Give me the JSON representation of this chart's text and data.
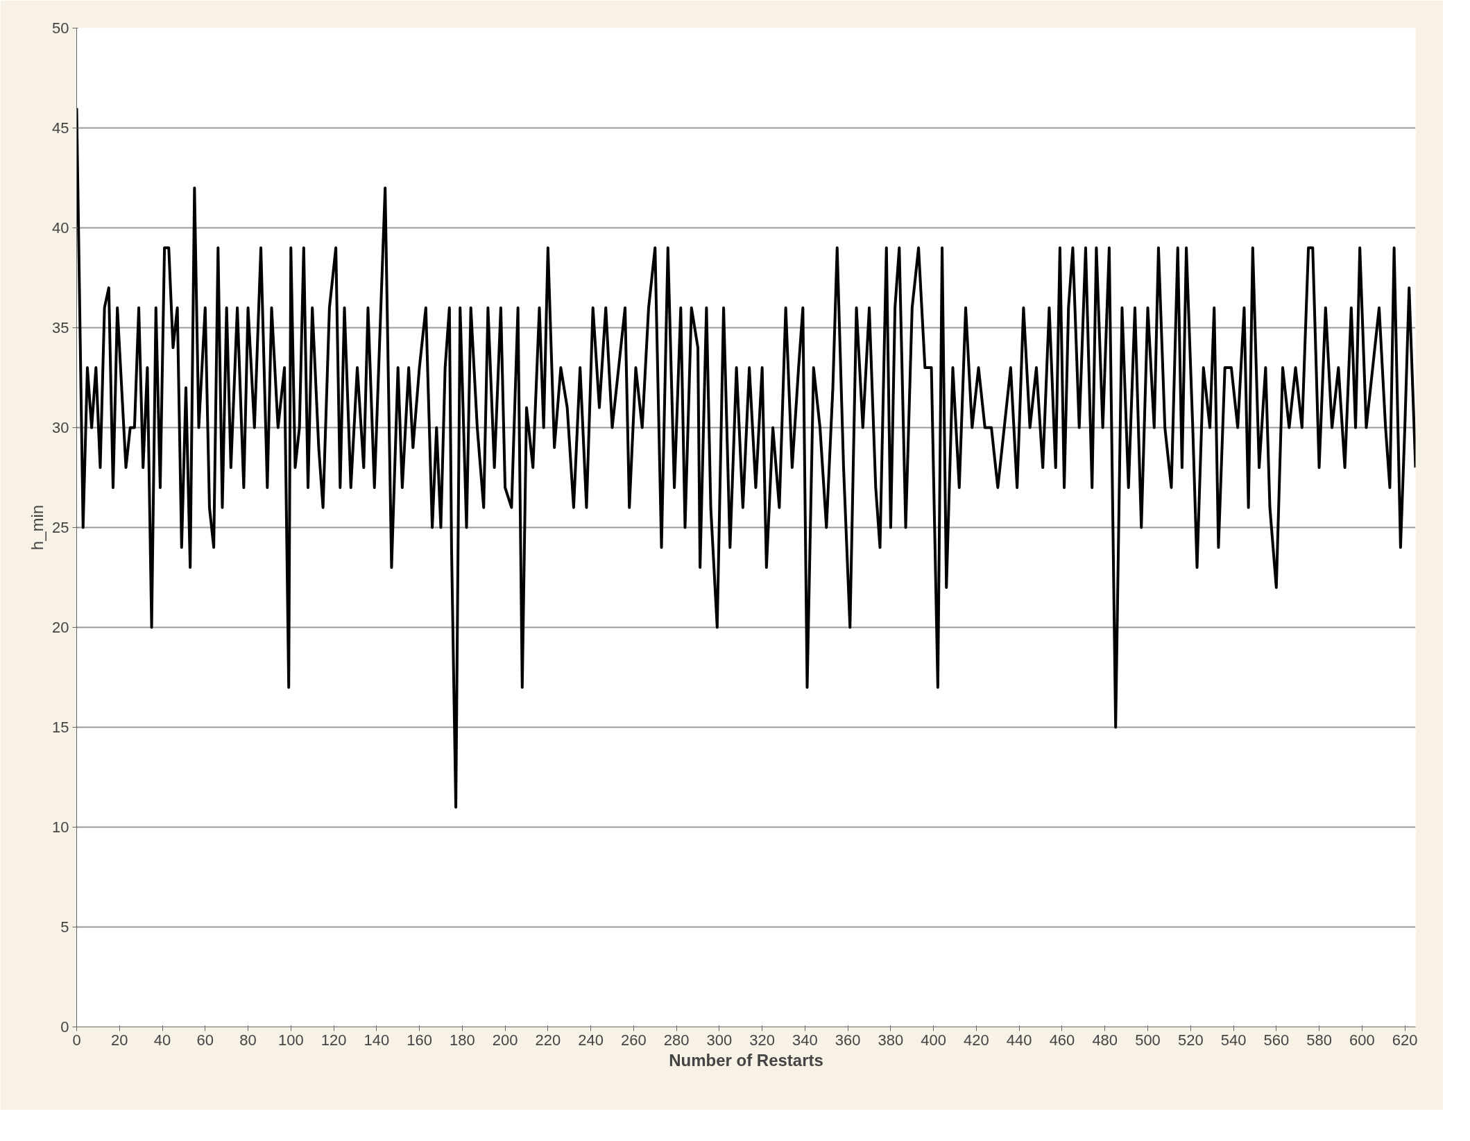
{
  "chart_data": {
    "type": "line",
    "xlabel": "Number of Restarts",
    "ylabel": "h_min",
    "xlim": [
      0,
      625
    ],
    "ylim": [
      0,
      50
    ],
    "xticks": [
      0,
      20,
      40,
      60,
      80,
      100,
      120,
      140,
      160,
      180,
      200,
      220,
      240,
      260,
      280,
      300,
      320,
      340,
      360,
      380,
      400,
      420,
      440,
      460,
      480,
      500,
      520,
      540,
      560,
      580,
      600,
      620
    ],
    "yticks": [
      0,
      5,
      10,
      15,
      20,
      25,
      30,
      35,
      40,
      45,
      50
    ],
    "grid": "y",
    "marker": "none",
    "line_style": "solid",
    "x": [
      0,
      3,
      5,
      7,
      9,
      11,
      13,
      15,
      17,
      19,
      21,
      23,
      25,
      27,
      29,
      31,
      33,
      35,
      37,
      39,
      41,
      43,
      45,
      47,
      49,
      51,
      53,
      55,
      57,
      60,
      62,
      64,
      66,
      68,
      70,
      72,
      75,
      78,
      80,
      83,
      86,
      89,
      91,
      94,
      97,
      99,
      100,
      102,
      104,
      106,
      108,
      110,
      113,
      115,
      118,
      121,
      123,
      125,
      128,
      131,
      134,
      136,
      139,
      141,
      144,
      147,
      150,
      152,
      155,
      157,
      160,
      163,
      166,
      168,
      170,
      172,
      174,
      175,
      177,
      179,
      182,
      184,
      187,
      190,
      192,
      195,
      198,
      200,
      203,
      206,
      208,
      210,
      213,
      216,
      218,
      220,
      223,
      226,
      229,
      232,
      235,
      238,
      241,
      244,
      247,
      250,
      253,
      256,
      258,
      261,
      264,
      267,
      270,
      273,
      276,
      279,
      282,
      284,
      287,
      290,
      291,
      294,
      296,
      299,
      302,
      305,
      308,
      311,
      314,
      317,
      320,
      322,
      325,
      328,
      331,
      334,
      337,
      339,
      341,
      344,
      347,
      350,
      353,
      355,
      358,
      361,
      364,
      367,
      370,
      373,
      375,
      378,
      380,
      382,
      384,
      387,
      390,
      393,
      396,
      399,
      402,
      404,
      406,
      409,
      412,
      415,
      418,
      421,
      424,
      427,
      430,
      433,
      436,
      439,
      442,
      445,
      448,
      451,
      454,
      457,
      459,
      461,
      463,
      465,
      468,
      471,
      474,
      476,
      479,
      482,
      485,
      488,
      491,
      494,
      497,
      500,
      503,
      505,
      508,
      511,
      514,
      516,
      518,
      521,
      523,
      526,
      529,
      531,
      533,
      536,
      539,
      542,
      545,
      547,
      549,
      552,
      555,
      557,
      560,
      563,
      566,
      569,
      572,
      575,
      577,
      580,
      583,
      586,
      589,
      592,
      595,
      597,
      599,
      602,
      605,
      608,
      611,
      613,
      615,
      618,
      620,
      622,
      625
    ],
    "series": [
      {
        "color": "#000000",
        "values": [
          46,
          25,
          33,
          30,
          33,
          28,
          36,
          37,
          27,
          36,
          32,
          28,
          30,
          30,
          36,
          28,
          33,
          20,
          36,
          27,
          39,
          39,
          34,
          36,
          24,
          32,
          23,
          42,
          30,
          36,
          26,
          24,
          39,
          26,
          36,
          28,
          36,
          27,
          36,
          30,
          39,
          27,
          36,
          30,
          33,
          17,
          39,
          28,
          30,
          39,
          27,
          36,
          29,
          26,
          36,
          39,
          27,
          36,
          27,
          33,
          28,
          36,
          27,
          33,
          42,
          23,
          33,
          27,
          33,
          29,
          33,
          36,
          25,
          30,
          25,
          33,
          36,
          24,
          11,
          36,
          25,
          36,
          30,
          26,
          36,
          28,
          36,
          27,
          26,
          36,
          17,
          31,
          28,
          36,
          30,
          39,
          29,
          33,
          31,
          26,
          33,
          26,
          36,
          31,
          36,
          30,
          33,
          36,
          26,
          33,
          30,
          36,
          39,
          24,
          39,
          27,
          36,
          25,
          36,
          34,
          23,
          36,
          26,
          20,
          36,
          24,
          33,
          26,
          33,
          27,
          33,
          23,
          30,
          26,
          36,
          28,
          33,
          36,
          17,
          33,
          30,
          25,
          32,
          39,
          28,
          20,
          36,
          30,
          36,
          27,
          24,
          39,
          25,
          36,
          39,
          25,
          36,
          39,
          33,
          33,
          17,
          39,
          22,
          33,
          27,
          36,
          30,
          33,
          30,
          30,
          27,
          30,
          33,
          27,
          36,
          30,
          33,
          28,
          36,
          28,
          39,
          27,
          36,
          39,
          30,
          39,
          27,
          39,
          30,
          39,
          15,
          36,
          27,
          36,
          25,
          36,
          30,
          39,
          30,
          27,
          39,
          28,
          39,
          30,
          23,
          33,
          30,
          36,
          24,
          33,
          33,
          30,
          36,
          26,
          39,
          28,
          33,
          26,
          22,
          33,
          30,
          33,
          30,
          39,
          39,
          28,
          36,
          30,
          33,
          28,
          36,
          30,
          39,
          30,
          33,
          36,
          30,
          27,
          39,
          24,
          30,
          37,
          28
        ]
      }
    ]
  }
}
